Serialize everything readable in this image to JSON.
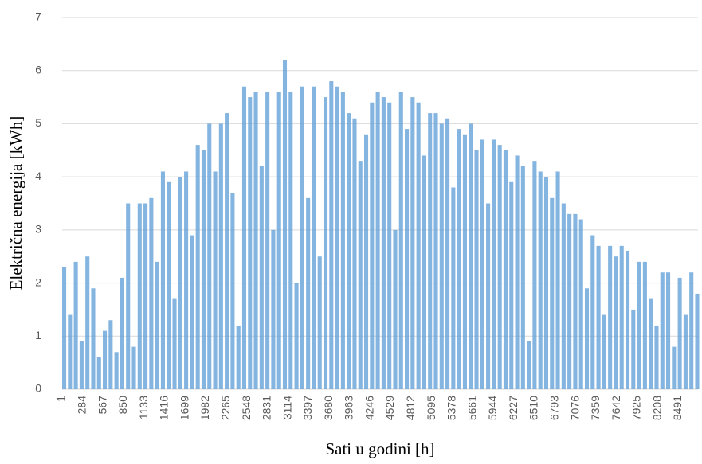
{
  "chart_data": {
    "type": "bar",
    "xlabel": "Sati u godini [h]",
    "ylabel": "Električna energija [kWh]",
    "color": "#5b9bd5",
    "xlim": [
      1,
      8760
    ],
    "xticks": [
      1,
      284,
      567,
      850,
      1133,
      1416,
      1699,
      1982,
      2265,
      2548,
      2831,
      3114,
      3397,
      3680,
      3963,
      4246,
      4529,
      4812,
      5095,
      5378,
      5661,
      5944,
      6227,
      6510,
      6793,
      7076,
      7359,
      7642,
      7925,
      8208,
      8491
    ],
    "ylim": [
      0,
      7
    ],
    "yticks": [
      0,
      1,
      2,
      3,
      4,
      5,
      6,
      7
    ],
    "grid": true,
    "x": [
      1,
      81,
      161,
      241,
      321,
      401,
      481,
      561,
      641,
      721,
      801,
      881,
      961,
      1041,
      1121,
      1201,
      1281,
      1361,
      1441,
      1521,
      1601,
      1681,
      1761,
      1841,
      1921,
      2001,
      2081,
      2161,
      2241,
      2321,
      2401,
      2481,
      2561,
      2641,
      2721,
      2801,
      2881,
      2961,
      3041,
      3121,
      3201,
      3281,
      3361,
      3441,
      3521,
      3601,
      3681,
      3761,
      3841,
      3921,
      4001,
      4081,
      4161,
      4241,
      4321,
      4401,
      4481,
      4561,
      4641,
      4721,
      4801,
      4881,
      4961,
      5041,
      5121,
      5201,
      5281,
      5361,
      5441,
      5521,
      5601,
      5681,
      5761,
      5841,
      5921,
      6001,
      6081,
      6161,
      6241,
      6321,
      6401,
      6481,
      6561,
      6641,
      6721,
      6801,
      6881,
      6961,
      7041,
      7121,
      7201,
      7281,
      7361,
      7441,
      7521,
      7601,
      7681,
      7761,
      7841,
      7921,
      8001,
      8081,
      8161,
      8241,
      8321,
      8401,
      8481,
      8561,
      8641,
      8721
    ],
    "values": [
      2.3,
      1.4,
      2.4,
      0.9,
      2.5,
      1.9,
      0.6,
      1.1,
      1.3,
      0.7,
      2.1,
      3.5,
      0.8,
      3.5,
      3.5,
      3.6,
      2.4,
      4.1,
      3.9,
      1.7,
      4.0,
      4.1,
      2.9,
      4.6,
      4.5,
      5.0,
      4.1,
      5.0,
      5.2,
      3.7,
      1.2,
      5.7,
      5.5,
      5.6,
      4.2,
      5.6,
      3.0,
      5.6,
      6.2,
      5.6,
      2.0,
      5.7,
      3.6,
      5.7,
      2.5,
      5.5,
      5.8,
      5.7,
      5.6,
      5.2,
      5.1,
      4.3,
      4.8,
      5.4,
      5.6,
      5.5,
      5.4,
      3.0,
      5.6,
      4.9,
      5.5,
      5.4,
      4.4,
      5.2,
      5.2,
      5.0,
      5.1,
      3.8,
      4.9,
      4.8,
      5.0,
      4.5,
      4.7,
      3.5,
      4.7,
      4.6,
      4.5,
      3.9,
      4.4,
      4.2,
      0.9,
      4.3,
      4.1,
      4.0,
      3.6,
      4.1,
      3.5,
      3.3,
      3.3,
      3.2,
      1.9,
      2.9,
      2.7,
      1.4,
      2.7,
      2.5,
      2.7,
      2.6,
      1.5,
      2.4,
      2.4,
      1.7,
      1.2,
      2.2,
      2.2,
      0.8,
      2.1,
      1.4,
      2.2,
      1.8
    ]
  }
}
